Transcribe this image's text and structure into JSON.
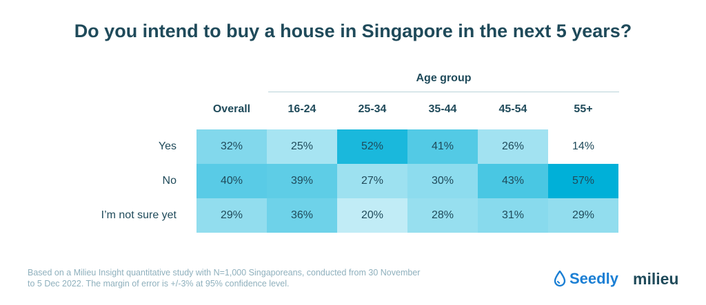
{
  "header": {
    "title": "Do you intend to buy a house in Singapore in the next 5 years?"
  },
  "chart_data": {
    "type": "heatmap",
    "title": "Do you intend to buy a house in Singapore in the next 5 years?",
    "column_group_label": "Age group",
    "columns": [
      "Overall",
      "16-24",
      "25-34",
      "35-44",
      "45-54",
      "55+"
    ],
    "rows": [
      "Yes",
      "No",
      "I’m not sure yet"
    ],
    "values": [
      [
        32,
        25,
        52,
        41,
        26,
        14
      ],
      [
        40,
        39,
        27,
        30,
        43,
        57
      ],
      [
        29,
        36,
        20,
        28,
        31,
        29
      ]
    ],
    "value_suffix": "%",
    "color_scale": {
      "low": "#ffffff",
      "high": "#00b0d8"
    }
  },
  "footnote": {
    "line1": "Based on a Milieu Insight quantitative study with N=1,000 Singaporeans, conducted from 30 November",
    "line2": "to 5 Dec 2022. The margin of error is +/-3% at 95% confidence level."
  },
  "logos": {
    "seedly": "Seedly",
    "milieu": "milieu",
    "seedly_icon": "droplet-icon",
    "seedly_color": "#1b7fd4"
  }
}
